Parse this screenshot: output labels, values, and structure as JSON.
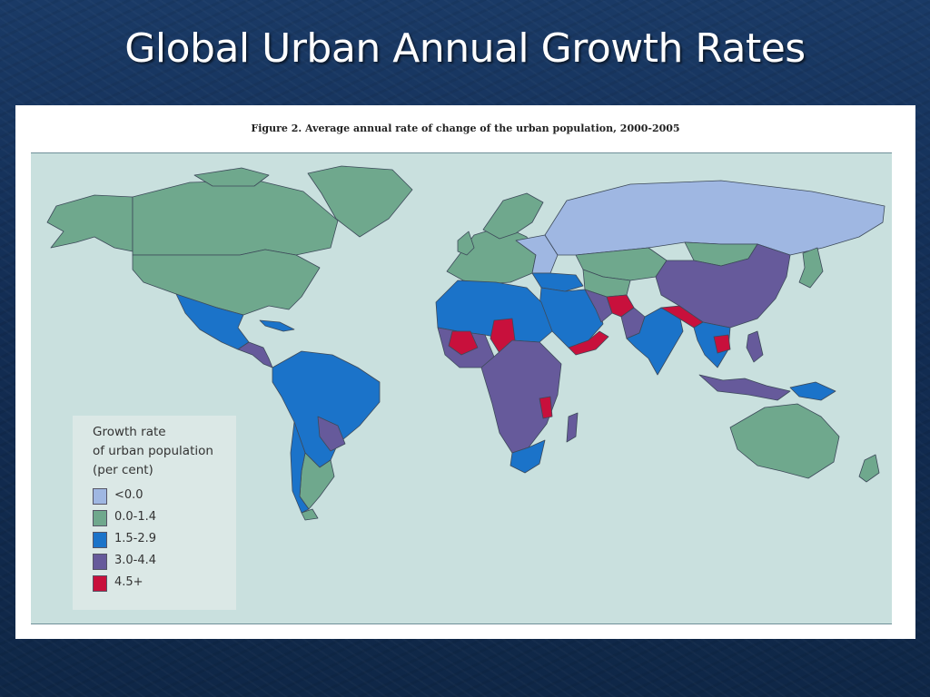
{
  "slide": {
    "title": "Global Urban Annual Growth Rates"
  },
  "figure": {
    "caption": "Figure 2. Average annual rate of change of the urban population, 2000-2005"
  },
  "legend": {
    "title_lines": [
      "Growth rate",
      "of urban population",
      "(per cent)"
    ],
    "items": [
      {
        "label": "<0.0",
        "color": "#9fb7e2"
      },
      {
        "label": "0.0-1.4",
        "color": "#6fa88d"
      },
      {
        "label": "1.5-2.9",
        "color": "#1b73c9"
      },
      {
        "label": "3.0-4.4",
        "color": "#665a9b"
      },
      {
        "label": "4.5+",
        "color": "#c8103c"
      }
    ]
  },
  "colors": {
    "ocean": "#c9e0de",
    "border": "#3d4a5a",
    "slide_background": "#14325a"
  }
}
